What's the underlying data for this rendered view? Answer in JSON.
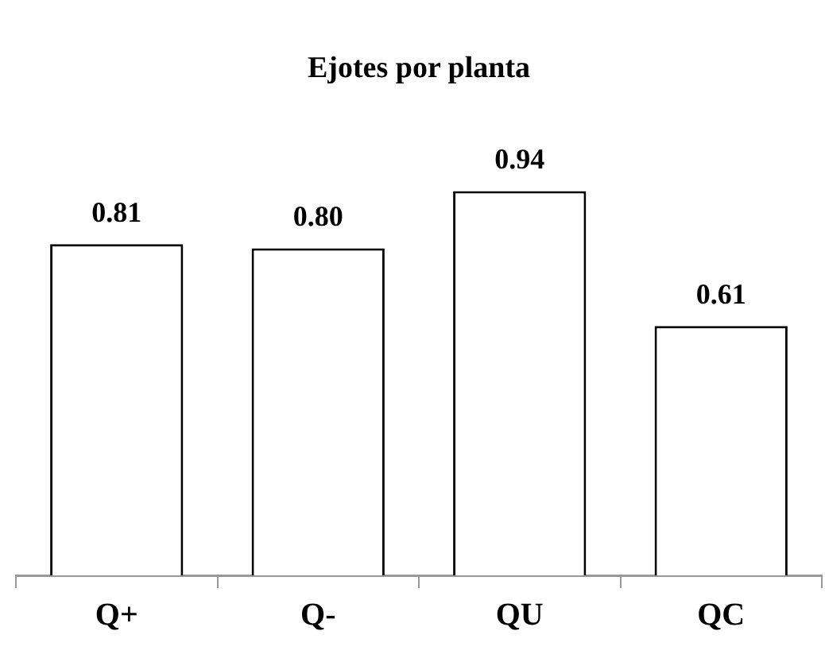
{
  "chart_data": {
    "type": "bar",
    "title": "Ejotes por planta",
    "categories": [
      "Q+",
      "Q-",
      "QU",
      "QC"
    ],
    "values": [
      0.81,
      0.8,
      0.94,
      0.61
    ],
    "value_labels": [
      "0.81",
      "0.80",
      "0.94",
      "0.61"
    ],
    "color": "#ffffff",
    "tick_labels": "x",
    "grid": false,
    "legend": false
  }
}
